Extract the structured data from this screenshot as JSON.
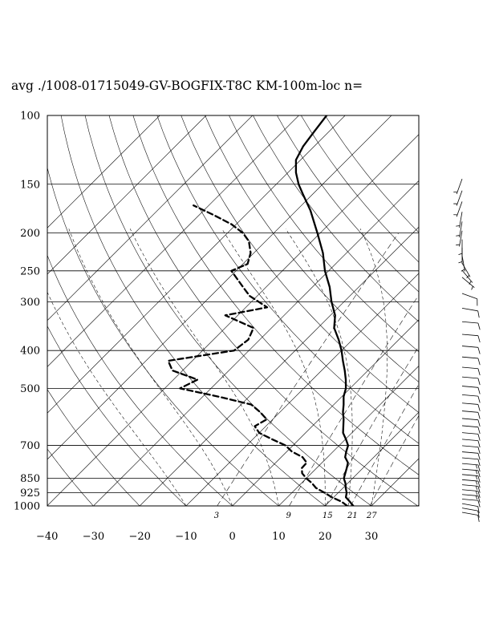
{
  "title": "avg ./1008-01715049-GV-BOGFIX-T8C KM-100m-loc n=",
  "chart_data": {
    "type": "line",
    "chart_kind": "skew-T log-P sounding",
    "title": "avg ./1008-01715049-GV-BOGFIX-T8C KM-100m-loc n=",
    "xlabel": "",
    "ylabel": "",
    "xlim": [
      -40,
      40
    ],
    "pressure_range": [
      1000,
      100
    ],
    "pressure_ticks": [
      100,
      150,
      200,
      250,
      300,
      400,
      500,
      700,
      850,
      925,
      1000
    ],
    "pressure_tick_labels": [
      "100",
      "150",
      "200",
      "250",
      "300",
      "400",
      "500",
      "700",
      "850",
      "925",
      "1000"
    ],
    "temperature_ticks": [
      -40,
      -30,
      -20,
      -10,
      0,
      10,
      20,
      30
    ],
    "temperature_tick_labels": [
      "−40",
      "−30",
      "−20",
      "−10",
      "0",
      "10",
      "20",
      "30"
    ],
    "mixing_ratio_labels": [
      "3",
      "9",
      "15",
      "21",
      "27"
    ],
    "mixing_ratio_lines": [
      3,
      9,
      15,
      21,
      27
    ],
    "dry_adiabat_temps_at_1000": [
      -30,
      -20,
      -10,
      0,
      10,
      20,
      30,
      40,
      50,
      60,
      70,
      80,
      90,
      100,
      110,
      120,
      130
    ],
    "moist_adiabat_temps_at_1000": [
      -10,
      0,
      10,
      20,
      25,
      30
    ],
    "series": [
      {
        "style": "solid",
        "points": [
          {
            "p": 1000,
            "t": 26.1
          },
          {
            "p": 975,
            "t": 24.4
          },
          {
            "p": 950,
            "t": 22.6
          },
          {
            "p": 925,
            "t": 21.8
          },
          {
            "p": 900,
            "t": 20.6
          },
          {
            "p": 875,
            "t": 19.5
          },
          {
            "p": 850,
            "t": 18.1
          },
          {
            "p": 800,
            "t": 16.5
          },
          {
            "p": 775,
            "t": 15.6
          },
          {
            "p": 750,
            "t": 13.8
          },
          {
            "p": 725,
            "t": 12.8
          },
          {
            "p": 700,
            "t": 11.9
          },
          {
            "p": 675,
            "t": 10.1
          },
          {
            "p": 650,
            "t": 8.1
          },
          {
            "p": 600,
            "t": 5.3
          },
          {
            "p": 575,
            "t": 3.6
          },
          {
            "p": 550,
            "t": 2.1
          },
          {
            "p": 525,
            "t": 0.4
          },
          {
            "p": 500,
            "t": -0.9
          },
          {
            "p": 475,
            "t": -2.8
          },
          {
            "p": 450,
            "t": -5.0
          },
          {
            "p": 425,
            "t": -7.5
          },
          {
            "p": 400,
            "t": -10.0
          },
          {
            "p": 375,
            "t": -13.0
          },
          {
            "p": 350,
            "t": -16.5
          },
          {
            "p": 325,
            "t": -19.0
          },
          {
            "p": 300,
            "t": -22.7
          },
          {
            "p": 275,
            "t": -26.3
          },
          {
            "p": 250,
            "t": -30.8
          },
          {
            "p": 225,
            "t": -35.1
          },
          {
            "p": 200,
            "t": -40.6
          },
          {
            "p": 175,
            "t": -47.0
          },
          {
            "p": 160,
            "t": -51.8
          },
          {
            "p": 150,
            "t": -55.2
          },
          {
            "p": 140,
            "t": -58.3
          },
          {
            "p": 130,
            "t": -61.0
          },
          {
            "p": 120,
            "t": -62.4
          },
          {
            "p": 110,
            "t": -63.2
          },
          {
            "p": 100,
            "t": -64.0
          }
        ]
      },
      {
        "style": "dashed",
        "points": [
          {
            "p": 1000,
            "t": 24.8
          },
          {
            "p": 975,
            "t": 22.6
          },
          {
            "p": 950,
            "t": 19.6
          },
          {
            "p": 925,
            "t": 17.0
          },
          {
            "p": 900,
            "t": 14.2
          },
          {
            "p": 875,
            "t": 12.3
          },
          {
            "p": 850,
            "t": 10.0
          },
          {
            "p": 825,
            "t": 8.0
          },
          {
            "p": 800,
            "t": 6.8
          },
          {
            "p": 775,
            "t": 6.7
          },
          {
            "p": 750,
            "t": 4.6
          },
          {
            "p": 725,
            "t": 1.0
          },
          {
            "p": 700,
            "t": -1.6
          },
          {
            "p": 675,
            "t": -5.8
          },
          {
            "p": 650,
            "t": -10.0
          },
          {
            "p": 625,
            "t": -12.4
          },
          {
            "p": 600,
            "t": -11.3
          },
          {
            "p": 575,
            "t": -14.3
          },
          {
            "p": 550,
            "t": -17.8
          },
          {
            "p": 525,
            "t": -26.6
          },
          {
            "p": 500,
            "t": -36.7
          },
          {
            "p": 475,
            "t": -34.8
          },
          {
            "p": 450,
            "t": -42.2
          },
          {
            "p": 425,
            "t": -45.2
          },
          {
            "p": 400,
            "t": -33.2
          },
          {
            "p": 375,
            "t": -32.5
          },
          {
            "p": 350,
            "t": -33.9
          },
          {
            "p": 325,
            "t": -42.7
          },
          {
            "p": 310,
            "t": -35.4
          },
          {
            "p": 290,
            "t": -41.6
          },
          {
            "p": 275,
            "t": -45.0
          },
          {
            "p": 250,
            "t": -51.0
          },
          {
            "p": 240,
            "t": -49.0
          },
          {
            "p": 225,
            "t": -50.7
          },
          {
            "p": 210,
            "t": -53.6
          },
          {
            "p": 200,
            "t": -56.7
          },
          {
            "p": 190,
            "t": -61.0
          },
          {
            "p": 180,
            "t": -66.8
          },
          {
            "p": 170,
            "t": -73.3
          }
        ]
      }
    ],
    "wind_profile": [
      {
        "p": 1000,
        "dir": 100,
        "spd": 10
      },
      {
        "p": 975,
        "dir": 100,
        "spd": 12
      },
      {
        "p": 950,
        "dir": 100,
        "spd": 13
      },
      {
        "p": 925,
        "dir": 95,
        "spd": 14
      },
      {
        "p": 900,
        "dir": 95,
        "spd": 15
      },
      {
        "p": 875,
        "dir": 95,
        "spd": 15
      },
      {
        "p": 850,
        "dir": 95,
        "spd": 16
      },
      {
        "p": 825,
        "dir": 95,
        "spd": 16
      },
      {
        "p": 800,
        "dir": 95,
        "spd": 15
      },
      {
        "p": 775,
        "dir": 95,
        "spd": 15
      },
      {
        "p": 750,
        "dir": 95,
        "spd": 15
      },
      {
        "p": 725,
        "dir": 95,
        "spd": 14
      },
      {
        "p": 700,
        "dir": 95,
        "spd": 14
      },
      {
        "p": 675,
        "dir": 95,
        "spd": 13
      },
      {
        "p": 650,
        "dir": 95,
        "spd": 13
      },
      {
        "p": 625,
        "dir": 95,
        "spd": 12
      },
      {
        "p": 600,
        "dir": 95,
        "spd": 12
      },
      {
        "p": 575,
        "dir": 95,
        "spd": 12
      },
      {
        "p": 550,
        "dir": 95,
        "spd": 11
      },
      {
        "p": 525,
        "dir": 95,
        "spd": 11
      },
      {
        "p": 500,
        "dir": 95,
        "spd": 11
      },
      {
        "p": 475,
        "dir": 95,
        "spd": 11
      },
      {
        "p": 450,
        "dir": 95,
        "spd": 12
      },
      {
        "p": 425,
        "dir": 95,
        "spd": 12
      },
      {
        "p": 400,
        "dir": 95,
        "spd": 12
      },
      {
        "p": 375,
        "dir": 95,
        "spd": 12
      },
      {
        "p": 350,
        "dir": 95,
        "spd": 12
      },
      {
        "p": 325,
        "dir": 95,
        "spd": 12
      },
      {
        "p": 300,
        "dir": 100,
        "spd": 11
      },
      {
        "p": 275,
        "dir": 110,
        "spd": 10
      },
      {
        "p": 250,
        "dir": 130,
        "spd": 8
      },
      {
        "p": 240,
        "dir": 140,
        "spd": 7
      },
      {
        "p": 230,
        "dir": 150,
        "spd": 6
      },
      {
        "p": 220,
        "dir": 170,
        "spd": 6
      },
      {
        "p": 210,
        "dir": 180,
        "spd": 6
      },
      {
        "p": 200,
        "dir": 180,
        "spd": 7
      },
      {
        "p": 190,
        "dir": 190,
        "spd": 7
      },
      {
        "p": 180,
        "dir": 190,
        "spd": 8
      },
      {
        "p": 170,
        "dir": 190,
        "spd": 8
      },
      {
        "p": 160,
        "dir": 200,
        "spd": 8
      },
      {
        "p": 150,
        "dir": 200,
        "spd": 9
      },
      {
        "p": 140,
        "dir": 200,
        "spd": 9
      }
    ]
  }
}
